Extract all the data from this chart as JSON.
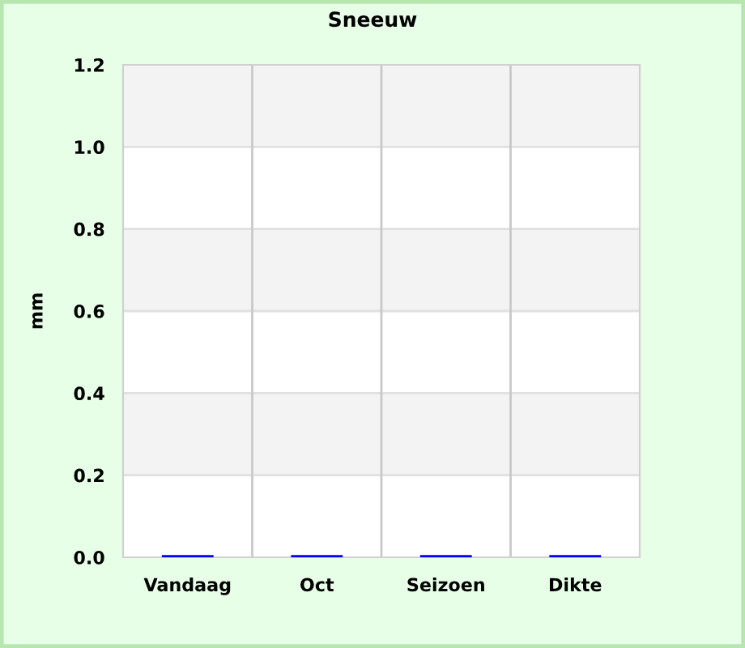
{
  "chart_data": {
    "type": "bar",
    "title": "Sneeuw",
    "ylabel": "mm",
    "categories": [
      "Vandaag",
      "Oct",
      "Seizoen",
      "Dikte"
    ],
    "series": [
      {
        "color": "#0000ff",
        "values": [
          0,
          0,
          0,
          0
        ]
      }
    ],
    "ylim": [
      0,
      1.2
    ],
    "yticks": [
      {
        "value": 0,
        "label": "0.0"
      },
      0.2,
      0.4,
      0.6,
      0.8,
      {
        "value": 1,
        "label": "1.0"
      },
      1.2
    ],
    "grid": true
  }
}
